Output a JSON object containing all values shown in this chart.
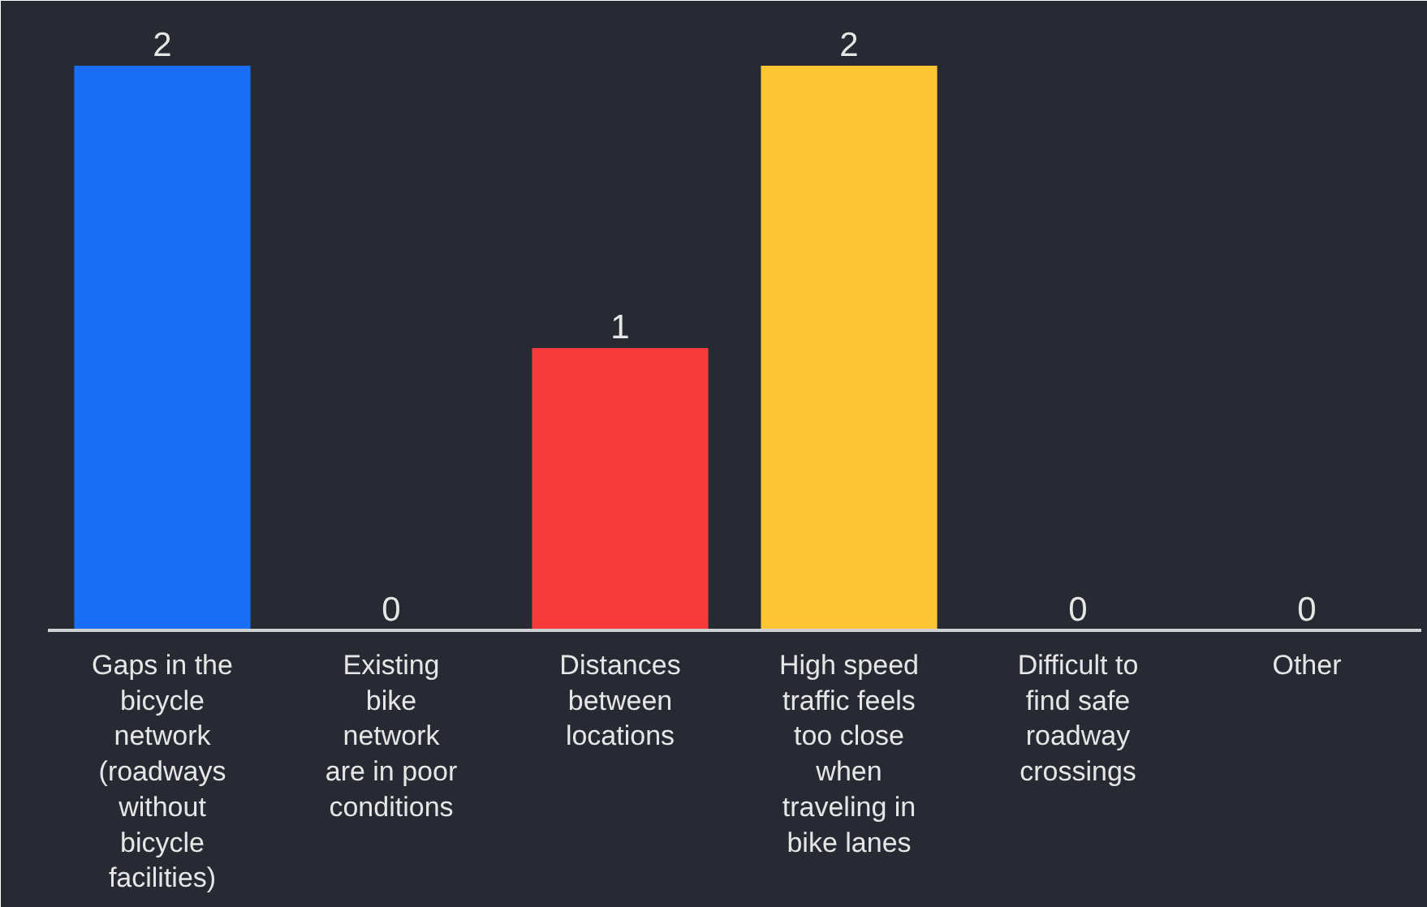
{
  "chart_data": {
    "type": "bar",
    "categories": [
      "Gaps in the\nbicycle\nnetwork\n(roadways\nwithout\nbicycle\nfacilities)",
      "Existing\nbike\nnetwork\nare in poor\nconditions",
      "Distances\nbetween\nlocations",
      "High speed\ntraffic feels\ntoo close\nwhen\ntraveling in\nbike lanes",
      "Difficult to\nfind safe\nroadway\ncrossings",
      "Other"
    ],
    "values": [
      2,
      0,
      1,
      2,
      0,
      0
    ],
    "colors": [
      "#1a6ef5",
      "#1a6ef5",
      "#f53b3b",
      "#fdc434",
      "#1a6ef5",
      "#1a6ef5"
    ],
    "data_labels": true,
    "grid": false
  }
}
